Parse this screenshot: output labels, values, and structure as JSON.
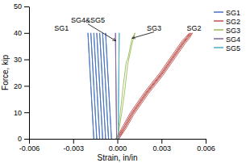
{
  "chart_data": {
    "type": "line",
    "xlabel": "Strain, in/in",
    "ylabel": "Force, kip",
    "xlim": [
      -0.006,
      0.006
    ],
    "ylim": [
      0,
      50
    ],
    "xticks": [
      -0.006,
      -0.003,
      {
        "value": 0.0,
        "label": "0.000"
      },
      0.003,
      0.006
    ],
    "yticks": [
      0,
      10,
      20,
      30,
      40,
      50
    ],
    "grid": false,
    "legend": "upper right",
    "series": [
      {
        "name": "SG1",
        "color": "#4472C4",
        "x": [
          -0.0016,
          -0.00165,
          -0.0017,
          -0.00175,
          -0.0018,
          -0.00185,
          -0.0019,
          -0.00195,
          -0.002,
          -0.002,
          -0.00195,
          -0.0019,
          -0.00185,
          -0.0018,
          -0.00175,
          -0.0017,
          -0.00165,
          -0.0016,
          null,
          -0.0014,
          -0.00145,
          -0.0015,
          -0.00155,
          -0.0016,
          -0.00165,
          -0.0017,
          -0.00175,
          -0.0018,
          -0.0018,
          -0.00175,
          -0.0017,
          -0.00165,
          -0.0016,
          -0.00155,
          -0.0015,
          -0.00145,
          -0.0014,
          null,
          -0.0012,
          -0.00125,
          -0.0013,
          -0.00135,
          -0.0014,
          -0.00145,
          -0.0015,
          -0.00155,
          -0.0016,
          -0.0016,
          -0.00155,
          -0.0015,
          -0.00145,
          -0.0014,
          -0.00135,
          -0.0013,
          -0.00125,
          -0.0012,
          null,
          -0.001,
          -0.00105,
          -0.0011,
          -0.00115,
          -0.0012,
          -0.00125,
          -0.0013,
          -0.00135,
          -0.0014,
          -0.0014,
          -0.00135,
          -0.0013,
          -0.00125,
          -0.0012,
          -0.00115,
          -0.0011,
          -0.00105,
          -0.001,
          null,
          -0.0008,
          -0.00085,
          -0.0009,
          -0.00095,
          -0.001,
          -0.00105,
          -0.0011,
          -0.00115,
          -0.0012,
          -0.0012,
          -0.00115,
          -0.0011,
          -0.00105,
          -0.001,
          -0.00095,
          -0.0009,
          -0.00085,
          -0.0008,
          null,
          -0.0006,
          -0.00065,
          -0.0007,
          -0.00075,
          -0.0008,
          -0.00085,
          -0.0009,
          -0.00095,
          -0.001,
          -0.001,
          -0.00095,
          -0.0009,
          -0.00085,
          -0.0008,
          -0.00075,
          -0.0007,
          -0.00065,
          -0.0006,
          null,
          -0.0004,
          -0.00045,
          -0.0005,
          -0.00055,
          -0.0006,
          -0.00065,
          -0.0007,
          -0.00075,
          -0.0008,
          -0.0008,
          -0.00075,
          -0.0007,
          -0.00065,
          -0.0006,
          -0.00055,
          -0.0005,
          -0.00045,
          -0.0004
        ],
        "values": [
          0,
          5,
          10,
          15,
          20,
          25,
          30,
          35,
          40,
          40,
          35,
          30,
          25,
          20,
          15,
          10,
          5,
          0,
          null,
          0,
          5,
          10,
          15,
          20,
          25,
          30,
          35,
          40,
          40,
          35,
          30,
          25,
          20,
          15,
          10,
          5,
          0,
          null,
          0,
          5,
          10,
          15,
          20,
          25,
          30,
          35,
          40,
          40,
          35,
          30,
          25,
          20,
          15,
          10,
          5,
          0,
          null,
          0,
          5,
          10,
          15,
          20,
          25,
          30,
          35,
          40,
          40,
          35,
          30,
          25,
          20,
          15,
          10,
          5,
          0,
          null,
          0,
          5,
          10,
          15,
          20,
          25,
          30,
          35,
          40,
          40,
          35,
          30,
          25,
          20,
          15,
          10,
          5,
          0,
          null,
          0,
          5,
          10,
          15,
          20,
          25,
          30,
          35,
          40,
          40,
          35,
          30,
          25,
          20,
          15,
          10,
          5,
          0,
          null,
          0,
          5,
          10,
          15,
          20,
          25,
          30,
          35,
          40,
          40,
          35,
          30,
          25,
          20,
          15,
          10,
          5,
          0
        ]
      },
      {
        "name": "SG2",
        "color": "#C0504D",
        "x": [
          -0.0001,
          0.0004,
          0.0009,
          0.0019,
          0.0029,
          0.0039,
          0.0044,
          0.0049,
          0.0049,
          0.0047,
          0.0044,
          0.0039,
          0.0029,
          0.0019,
          0.0009,
          0.0004,
          -0.0001,
          null,
          0.0,
          0.0005,
          0.001,
          0.002,
          0.003,
          0.004,
          0.0045,
          0.005,
          0.005,
          0.0048,
          0.0045,
          0.004,
          0.003,
          0.002,
          0.001,
          0.0005,
          0.0,
          null,
          0.0001,
          0.0006,
          0.0011,
          0.0021,
          0.0031,
          0.0041,
          0.0046,
          0.0051,
          0.0051,
          0.0049,
          0.0046,
          0.0041,
          0.0031,
          0.0021,
          0.0011,
          0.0006,
          0.0001
        ],
        "values": [
          0,
          5,
          10,
          18,
          25,
          33,
          37,
          40,
          40,
          38,
          36,
          32,
          24,
          17,
          9,
          4,
          0,
          null,
          0,
          5,
          10,
          18,
          25,
          33,
          37,
          40,
          40,
          38,
          36,
          32,
          24,
          17,
          9,
          4,
          0,
          null,
          0,
          5,
          10,
          18,
          25,
          33,
          37,
          40,
          40,
          38,
          36,
          32,
          24,
          17,
          9,
          4,
          0
        ]
      },
      {
        "name": "SG3",
        "color": "#9BBB59",
        "x": [
          0.0,
          0.0002,
          0.0004,
          0.0006,
          0.0007,
          0.001,
          0.0012,
          0.0012,
          0.001,
          0.0007,
          0.0005,
          0.0003,
          0.0001,
          0.0
        ],
        "values": [
          0,
          10,
          20,
          29,
          30,
          38,
          40,
          40,
          36,
          28,
          18,
          10,
          3,
          0
        ]
      },
      {
        "name": "SG4",
        "color": "#8064A2",
        "x": [
          -5e-05,
          -6e-05,
          -7e-05,
          -8e-05,
          -9e-05,
          -0.0001,
          -0.00011,
          -0.00012,
          -0.00013,
          -0.00013,
          -0.00012,
          -0.00011,
          -0.0001,
          -9e-05,
          -8e-05,
          -7e-05,
          -6e-05,
          -5e-05
        ],
        "values": [
          0,
          5,
          10,
          15,
          20,
          25,
          30,
          35,
          40,
          40,
          35,
          30,
          25,
          20,
          15,
          10,
          5,
          0
        ]
      },
      {
        "name": "SG5",
        "color": "#4BACC6",
        "x": [
          5e-05,
          6e-05,
          7e-05,
          8e-05,
          9e-05,
          0.0001,
          0.00011,
          0.00012,
          0.00013,
          0.00013,
          0.00012,
          0.00011,
          0.0001,
          9e-05,
          8e-05,
          7e-05,
          6e-05,
          5e-05
        ],
        "values": [
          0,
          5,
          10,
          15,
          20,
          25,
          30,
          35,
          40,
          40,
          35,
          30,
          25,
          20,
          15,
          10,
          5,
          0
        ]
      }
    ],
    "annotations": [
      {
        "text": "SG1",
        "x": -0.0038,
        "y": 41
      },
      {
        "text": "SG4&SG5",
        "x": -0.002,
        "y": 44,
        "arrow_to": [
          -0.0001,
          37
        ]
      },
      {
        "text": "SG3",
        "x": 0.0025,
        "y": 41,
        "arrow_to": [
          0.001,
          38
        ]
      },
      {
        "text": "SG2",
        "x": 0.0052,
        "y": 41
      }
    ]
  }
}
